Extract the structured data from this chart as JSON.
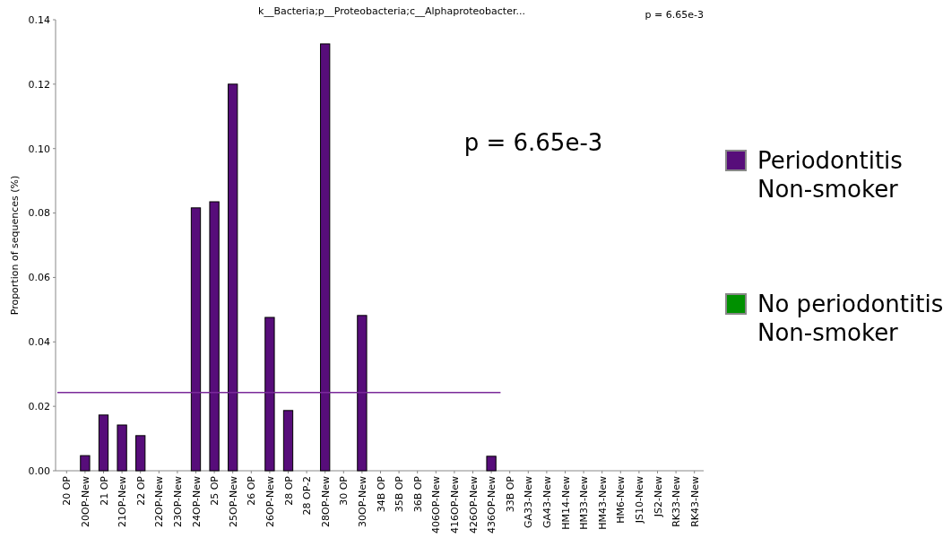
{
  "chart_data": {
    "type": "bar",
    "title": "k__Bacteria;p__Proteobacteria;c__Alphaproteobacter...",
    "ylabel": "Proportion of sequences (%)",
    "categories": [
      "20 OP",
      "20OP-New",
      "21 OP",
      "21OP-New",
      "22 OP",
      "22OP-New",
      "23OP-New",
      "24OP-New",
      "25 OP",
      "25OP-New",
      "26 OP",
      "26OP-New",
      "28 OP",
      "28 OP-2",
      "28OP-New",
      "30 OP",
      "30OP-New",
      "34B OP",
      "35B OP",
      "36B OP",
      "406OP-New",
      "416OP-New",
      "426OP-New",
      "436OP-New",
      "33B OP",
      "GA33-New",
      "GA43-New",
      "HM14-New",
      "HM33-New",
      "HM43-New",
      "HM6-New",
      "JS10-New",
      "JS2-New",
      "RK33-New",
      "RK43-New"
    ],
    "series": [
      {
        "name": "Periodontitis Non-smoker",
        "color": "#570d7a",
        "values": [
          0,
          0.0047,
          0.0173,
          0.0142,
          0.0109,
          0,
          0,
          0.0816,
          0.0835,
          0.12,
          0,
          0.0476,
          0.0187,
          0,
          0.1325,
          0,
          0.0482,
          0,
          0,
          0,
          0,
          0,
          0,
          0.0045,
          null,
          null,
          null,
          null,
          null,
          null,
          null,
          null,
          null,
          null,
          null
        ]
      },
      {
        "name": "No periodontitis Non-smoker",
        "color": "#009000",
        "values": [
          null,
          null,
          null,
          null,
          null,
          null,
          null,
          null,
          null,
          null,
          null,
          null,
          null,
          null,
          null,
          null,
          null,
          null,
          null,
          null,
          null,
          null,
          null,
          null,
          0,
          0,
          0,
          0,
          0,
          0,
          0,
          0,
          0,
          0,
          0
        ]
      }
    ],
    "ylim": [
      0,
      0.14
    ],
    "yticks": [
      {
        "value": 0,
        "label": "0.00"
      },
      {
        "value": 0.02,
        "label": "0.02"
      },
      {
        "value": 0.04,
        "label": "0.04"
      },
      {
        "value": 0.06,
        "label": "0.06"
      },
      {
        "value": 0.08,
        "label": "0.08"
      },
      {
        "value": 0.1,
        "label": "0.10"
      },
      {
        "value": 0.12,
        "label": "0.12"
      },
      {
        "value": 0.14,
        "label": "0.14"
      }
    ],
    "ref_lines": [
      {
        "axis": "y",
        "value": 0.0243,
        "color": "#7a2a9a"
      }
    ],
    "annotations": [
      "p = 6.65e-3",
      "p = 6.65e-3"
    ],
    "grid": false,
    "legend": "right"
  }
}
